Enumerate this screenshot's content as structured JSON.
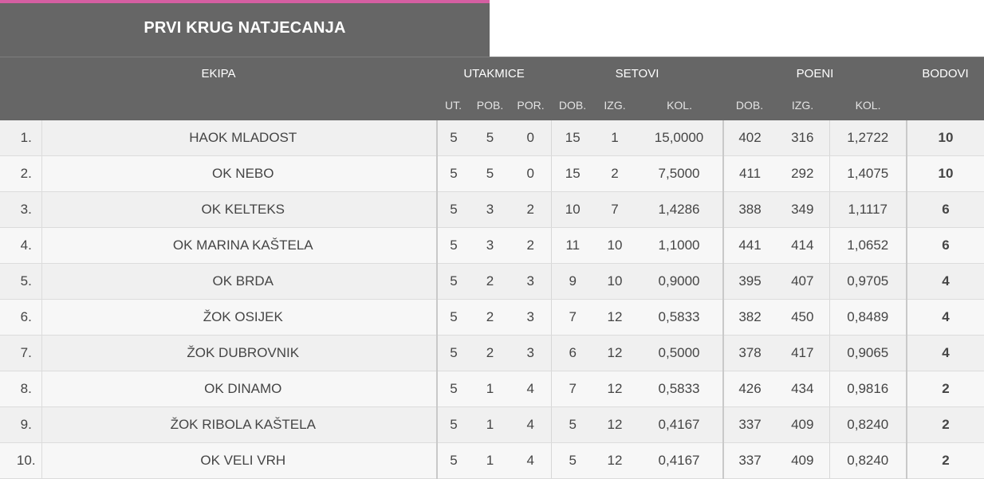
{
  "title": "PRVI KRUG NATJECANJA",
  "colors": {
    "accent": "#d55fa2",
    "header_bg": "#666666",
    "points": "#c4569a"
  },
  "header": {
    "team": "EKIPA",
    "matches": "UTAKMICE",
    "sets": "SETOVI",
    "points": "POENI",
    "score": "BODOVI",
    "sub": {
      "played": "UT.",
      "won": "POB.",
      "lost": "POR.",
      "sets_won": "DOB.",
      "sets_lost": "IZG.",
      "sets_ratio": "KOL.",
      "pts_won": "DOB.",
      "pts_lost": "IZG.",
      "pts_ratio": "KOL."
    }
  },
  "rows": [
    {
      "rank": "1.",
      "team": "HAOK MLADOST",
      "played": "5",
      "won": "5",
      "lost": "0",
      "sets_won": "15",
      "sets_lost": "1",
      "sets_ratio": "15,0000",
      "pts_won": "402",
      "pts_lost": "316",
      "pts_ratio": "1,2722",
      "score": "10"
    },
    {
      "rank": "2.",
      "team": "OK NEBO",
      "played": "5",
      "won": "5",
      "lost": "0",
      "sets_won": "15",
      "sets_lost": "2",
      "sets_ratio": "7,5000",
      "pts_won": "411",
      "pts_lost": "292",
      "pts_ratio": "1,4075",
      "score": "10"
    },
    {
      "rank": "3.",
      "team": "OK KELTEKS",
      "played": "5",
      "won": "3",
      "lost": "2",
      "sets_won": "10",
      "sets_lost": "7",
      "sets_ratio": "1,4286",
      "pts_won": "388",
      "pts_lost": "349",
      "pts_ratio": "1,1117",
      "score": "6"
    },
    {
      "rank": "4.",
      "team": "OK MARINA KAŠTELA",
      "played": "5",
      "won": "3",
      "lost": "2",
      "sets_won": "11",
      "sets_lost": "10",
      "sets_ratio": "1,1000",
      "pts_won": "441",
      "pts_lost": "414",
      "pts_ratio": "1,0652",
      "score": "6"
    },
    {
      "rank": "5.",
      "team": "OK BRDA",
      "played": "5",
      "won": "2",
      "lost": "3",
      "sets_won": "9",
      "sets_lost": "10",
      "sets_ratio": "0,9000",
      "pts_won": "395",
      "pts_lost": "407",
      "pts_ratio": "0,9705",
      "score": "4"
    },
    {
      "rank": "6.",
      "team": "ŽOK OSIJEK",
      "played": "5",
      "won": "2",
      "lost": "3",
      "sets_won": "7",
      "sets_lost": "12",
      "sets_ratio": "0,5833",
      "pts_won": "382",
      "pts_lost": "450",
      "pts_ratio": "0,8489",
      "score": "4"
    },
    {
      "rank": "7.",
      "team": "ŽOK DUBROVNIK",
      "played": "5",
      "won": "2",
      "lost": "3",
      "sets_won": "6",
      "sets_lost": "12",
      "sets_ratio": "0,5000",
      "pts_won": "378",
      "pts_lost": "417",
      "pts_ratio": "0,9065",
      "score": "4"
    },
    {
      "rank": "8.",
      "team": "OK DINAMO",
      "played": "5",
      "won": "1",
      "lost": "4",
      "sets_won": "7",
      "sets_lost": "12",
      "sets_ratio": "0,5833",
      "pts_won": "426",
      "pts_lost": "434",
      "pts_ratio": "0,9816",
      "score": "2"
    },
    {
      "rank": "9.",
      "team": "ŽOK RIBOLA KAŠTELA",
      "played": "5",
      "won": "1",
      "lost": "4",
      "sets_won": "5",
      "sets_lost": "12",
      "sets_ratio": "0,4167",
      "pts_won": "337",
      "pts_lost": "409",
      "pts_ratio": "0,8240",
      "score": "2"
    },
    {
      "rank": "10.",
      "team": "OK VELI VRH",
      "played": "5",
      "won": "1",
      "lost": "4",
      "sets_won": "5",
      "sets_lost": "12",
      "sets_ratio": "0,4167",
      "pts_won": "337",
      "pts_lost": "409",
      "pts_ratio": "0,8240",
      "score": "2"
    }
  ]
}
